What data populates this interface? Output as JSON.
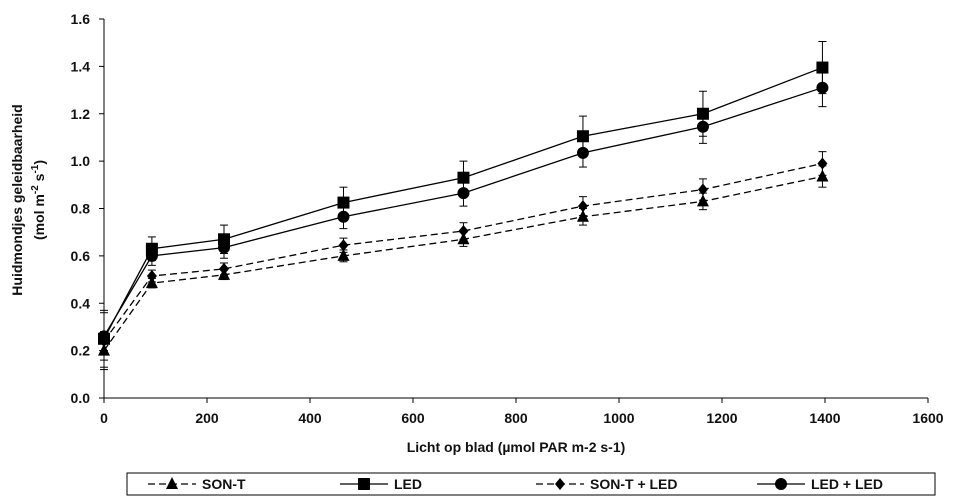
{
  "chart_data": {
    "type": "line",
    "xlabel": "Licht op blad (µmol PAR m-2 s-1)",
    "ylabel_line1": "Huidmondjes geleidbaarheid",
    "ylabel_line2": {
      "prefix": "(mol m",
      "sup1": "-2",
      "mid": " s",
      "sup2": "-1",
      "suffix": ")"
    },
    "xlim": [
      0,
      1600
    ],
    "ylim": [
      0.0,
      1.6
    ],
    "xticks": [
      0,
      200,
      400,
      600,
      800,
      1000,
      1200,
      1400,
      1600
    ],
    "yticks": [
      0.0,
      0.2,
      0.4,
      0.6,
      0.8,
      1.0,
      1.2,
      1.4,
      1.6
    ],
    "xtick_labels": [
      "0",
      "200",
      "400",
      "600",
      "800",
      "1000",
      "1200",
      "1400",
      "1600"
    ],
    "ytick_labels": [
      "0.0",
      "0.2",
      "0.4",
      "0.6",
      "0.8",
      "1.0",
      "1.2",
      "1.4",
      "1.6"
    ],
    "grid": false,
    "legend_position": "bottom",
    "x": [
      0,
      93,
      233,
      465,
      698,
      930,
      1163,
      1395
    ],
    "series": [
      {
        "name": "SON-T",
        "marker": "triangle",
        "dash": true,
        "values": [
          0.2,
          0.485,
          0.52,
          0.6,
          0.67,
          0.765,
          0.83,
          0.935
        ],
        "errors": [
          0.08,
          0.02,
          0.02,
          0.025,
          0.03,
          0.035,
          0.035,
          0.045
        ]
      },
      {
        "name": "LED",
        "marker": "square",
        "dash": false,
        "values": [
          0.25,
          0.63,
          0.67,
          0.825,
          0.93,
          1.105,
          1.2,
          1.395
        ],
        "errors": [
          0.12,
          0.05,
          0.06,
          0.065,
          0.07,
          0.085,
          0.095,
          0.11
        ]
      },
      {
        "name": "SON-T + LED",
        "marker": "diamond",
        "dash": true,
        "values": [
          0.24,
          0.515,
          0.545,
          0.645,
          0.705,
          0.81,
          0.88,
          0.99
        ],
        "errors": [
          0.04,
          0.025,
          0.025,
          0.03,
          0.035,
          0.04,
          0.045,
          0.05
        ]
      },
      {
        "name": "LED + LED",
        "marker": "circle",
        "dash": false,
        "values": [
          0.26,
          0.6,
          0.635,
          0.765,
          0.865,
          1.035,
          1.145,
          1.31
        ],
        "errors": [
          0.1,
          0.04,
          0.045,
          0.05,
          0.055,
          0.06,
          0.07,
          0.08
        ]
      }
    ]
  }
}
